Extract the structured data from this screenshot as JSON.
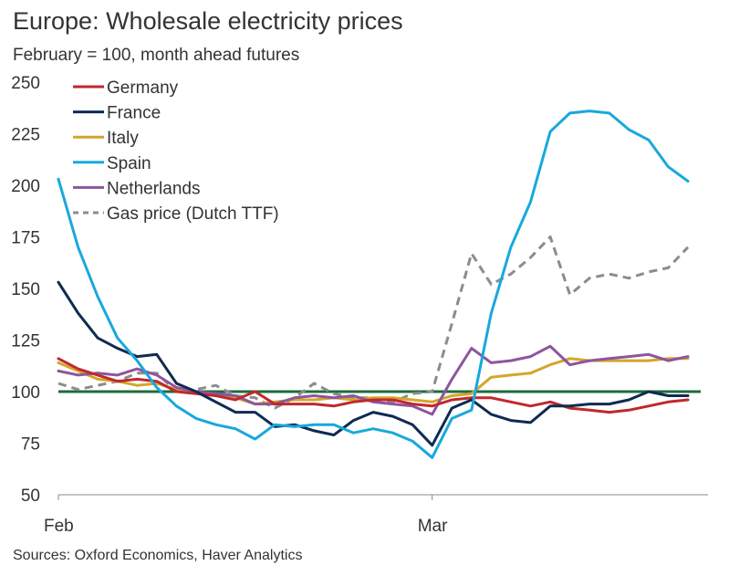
{
  "chart_data": {
    "type": "line",
    "title": "Europe: Wholesale electricity prices",
    "subtitle": "February = 100, month ahead futures",
    "source": "Sources: Oxford Economics, Haver Analytics",
    "xlabel": "",
    "ylabel": "",
    "ylim": [
      50,
      250
    ],
    "yticks": [
      "250",
      "225",
      "200",
      "175",
      "150",
      "125",
      "100",
      "75",
      "50"
    ],
    "x_tick_labels": [
      {
        "label": "Feb",
        "index": 0
      },
      {
        "label": "Mar",
        "index": 19
      }
    ],
    "reference_line": {
      "value": 100,
      "color": "#1e6b3a"
    },
    "legend_position": "top-left",
    "series": [
      {
        "name": "Germany",
        "color": "#c0282d",
        "dashed": false,
        "values": [
          116,
          111,
          108,
          105,
          106,
          105,
          100,
          99,
          98,
          96,
          100,
          94,
          94,
          94,
          93,
          95,
          96,
          96,
          94,
          93,
          96,
          97,
          97,
          95,
          93,
          95,
          92,
          91,
          90,
          91,
          93,
          95,
          96
        ]
      },
      {
        "name": "France",
        "color": "#0e2b52",
        "dashed": false,
        "values": [
          153,
          138,
          126,
          121,
          117,
          118,
          104,
          100,
          95,
          90,
          90,
          83,
          84,
          81,
          79,
          86,
          90,
          88,
          84,
          74,
          92,
          96,
          89,
          86,
          85,
          93,
          93,
          94,
          94,
          96,
          100,
          98,
          98
        ]
      },
      {
        "name": "Italy",
        "color": "#d4a62a",
        "dashed": false,
        "values": [
          114,
          110,
          106,
          105,
          103,
          104,
          101,
          100,
          98,
          97,
          94,
          95,
          96,
          96,
          97,
          96,
          97,
          97,
          96,
          95,
          98,
          99,
          107,
          108,
          109,
          113,
          116,
          115,
          115,
          115,
          115,
          116,
          116
        ]
      },
      {
        "name": "Spain",
        "color": "#19a8dd",
        "dashed": false,
        "values": [
          203,
          170,
          146,
          126,
          115,
          102,
          93,
          87,
          84,
          82,
          77,
          84,
          83,
          84,
          84,
          80,
          82,
          80,
          76,
          68,
          87,
          91,
          138,
          170,
          192,
          226,
          235,
          236,
          235,
          227,
          222,
          209,
          202
        ]
      },
      {
        "name": "Netherlands",
        "color": "#8e559e",
        "dashed": false,
        "values": [
          110,
          108,
          109,
          108,
          111,
          108,
          102,
          100,
          99,
          98,
          94,
          94,
          97,
          98,
          97,
          98,
          95,
          94,
          93,
          89,
          106,
          121,
          114,
          115,
          117,
          122,
          113,
          115,
          116,
          117,
          118,
          115,
          117
        ]
      },
      {
        "name": "Gas price (Dutch TTF)",
        "color": "#8c8c8c",
        "dashed": true,
        "values": [
          104,
          101,
          103,
          105,
          109,
          109,
          100,
          101,
          103,
          98,
          97,
          92,
          97,
          104,
          99,
          97,
          97,
          95,
          99,
          100,
          133,
          167,
          152,
          157,
          165,
          175,
          147,
          155,
          157,
          155,
          158,
          160,
          170
        ]
      }
    ]
  }
}
